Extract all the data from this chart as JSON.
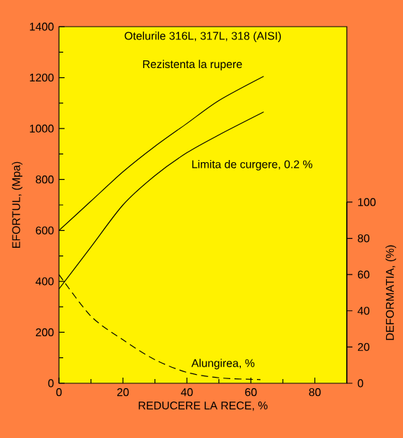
{
  "chart_data": {
    "type": "line",
    "title": "Otelurile 316L, 317L, 318 (AISI)",
    "xlabel": "REDUCERE LA RECE, %",
    "ylabel": "EFORTUL, (Mpa)",
    "y2label": "DEFORMATIA, (%)",
    "xlim": [
      0,
      90
    ],
    "xticks": [
      0,
      20,
      40,
      60,
      80
    ],
    "ylim": [
      0,
      1400
    ],
    "yticks": [
      0,
      200,
      400,
      600,
      800,
      1000,
      1200,
      1400
    ],
    "y2lim": [
      0,
      100
    ],
    "y2ticks": [
      0,
      20,
      40,
      60,
      80,
      100
    ],
    "grid": false,
    "marker": "none",
    "line_style": "solid",
    "series": [
      {
        "name": "Rezistenta la rupere",
        "color": "#000000",
        "x": [
          0,
          10,
          20,
          30,
          40,
          50,
          64
        ],
        "values": [
          600,
          715,
          830,
          930,
          1020,
          1110,
          1205
        ]
      },
      {
        "name": "Limita de curgere, 0.2 %",
        "color": "#000000",
        "x": [
          0,
          10,
          20,
          30,
          40,
          50,
          64
        ],
        "values": [
          370,
          535,
          700,
          815,
          905,
          975,
          1065
        ]
      },
      {
        "name": "Alungirea, %",
        "color": "#000000",
        "axis": "y2",
        "line_style": "dashed",
        "x": [
          0,
          10,
          20,
          30,
          40,
          50,
          63
        ],
        "values": [
          60,
          37,
          24,
          13,
          6,
          3,
          2
        ]
      }
    ]
  }
}
